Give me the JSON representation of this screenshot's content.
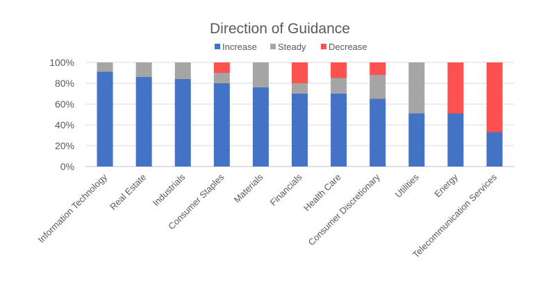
{
  "chart_data": {
    "type": "bar",
    "stacked": true,
    "title": "Direction of Guidance",
    "legend_position": "top",
    "grid": true,
    "xlabel": "",
    "ylabel": "",
    "ylim": [
      0,
      100
    ],
    "yticks": [
      "0%",
      "20%",
      "40%",
      "60%",
      "80%",
      "100%"
    ],
    "categories": [
      "Information Technology",
      "Real Estate",
      "Industrials",
      "Consumer Staples",
      "Materials",
      "Financials",
      "Health Care",
      "Consumer Discretionary",
      "Utilities",
      "Energy",
      "Telecommunication Services"
    ],
    "series": [
      {
        "name": "Increase",
        "color": "#4472c4",
        "values": [
          91,
          86,
          84,
          80,
          76,
          70,
          70,
          65,
          51,
          51,
          33
        ]
      },
      {
        "name": "Steady",
        "color": "#a5a5a5",
        "values": [
          9,
          14,
          16,
          10,
          24,
          10,
          15,
          23,
          49,
          0,
          0
        ]
      },
      {
        "name": "Decrease",
        "color": "#ff5050",
        "values": [
          0,
          0,
          0,
          10,
          0,
          20,
          15,
          12,
          0,
          49,
          67
        ]
      }
    ]
  }
}
